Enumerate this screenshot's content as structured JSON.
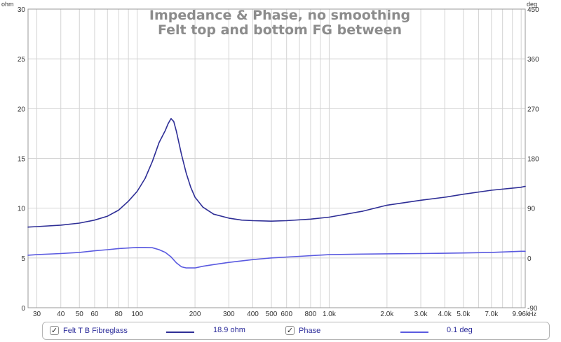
{
  "chart_data": {
    "type": "line",
    "title": "Impedance & Phase, no smoothing",
    "subtitle": "Felt top and bottom FG between",
    "x_axis": {
      "scale": "log",
      "range": [
        27,
        10500
      ],
      "unit": "Hz",
      "ticks": [
        {
          "value": 30,
          "label": "30"
        },
        {
          "value": 40,
          "label": "40"
        },
        {
          "value": 50,
          "label": "50"
        },
        {
          "value": 60,
          "label": "60"
        },
        {
          "value": 80,
          "label": "80"
        },
        {
          "value": 100,
          "label": "100"
        },
        {
          "value": 200,
          "label": "200"
        },
        {
          "value": 300,
          "label": "300"
        },
        {
          "value": 400,
          "label": "400"
        },
        {
          "value": 500,
          "label": "500"
        },
        {
          "value": 600,
          "label": "600"
        },
        {
          "value": 800,
          "label": "800"
        },
        {
          "value": 1000,
          "label": "1.0k"
        },
        {
          "value": 2000,
          "label": "2.0k"
        },
        {
          "value": 3000,
          "label": "3.0k"
        },
        {
          "value": 4000,
          "label": "4.0k"
        },
        {
          "value": 5000,
          "label": "5.0k"
        },
        {
          "value": 7000,
          "label": "7.0k"
        },
        {
          "value": 9960,
          "label": "9.96k"
        }
      ]
    },
    "y_left": {
      "unit": "ohm",
      "range": [
        0,
        30
      ],
      "ticks": [
        "0",
        "5",
        "10",
        "15",
        "20",
        "25",
        "30"
      ]
    },
    "y_right": {
      "unit": "deg",
      "range": [
        -90,
        450
      ],
      "ticks": [
        "-90",
        "0",
        "90",
        "180",
        "270",
        "360",
        "450"
      ]
    },
    "grid": true,
    "series": [
      {
        "name": "Felt T B Fibreglass",
        "axis": "left",
        "color": "#2e2e96",
        "legend_value": "18.9 ohm",
        "points": [
          [
            27,
            8.1
          ],
          [
            30,
            8.15
          ],
          [
            40,
            8.3
          ],
          [
            50,
            8.5
          ],
          [
            60,
            8.8
          ],
          [
            70,
            9.2
          ],
          [
            80,
            9.8
          ],
          [
            90,
            10.7
          ],
          [
            100,
            11.7
          ],
          [
            110,
            13.0
          ],
          [
            120,
            14.7
          ],
          [
            130,
            16.6
          ],
          [
            140,
            17.8
          ],
          [
            145,
            18.5
          ],
          [
            150,
            19.0
          ],
          [
            155,
            18.7
          ],
          [
            160,
            17.7
          ],
          [
            170,
            15.4
          ],
          [
            180,
            13.5
          ],
          [
            190,
            12.1
          ],
          [
            200,
            11.1
          ],
          [
            220,
            10.1
          ],
          [
            250,
            9.4
          ],
          [
            300,
            9.0
          ],
          [
            350,
            8.8
          ],
          [
            400,
            8.75
          ],
          [
            500,
            8.7
          ],
          [
            600,
            8.75
          ],
          [
            800,
            8.9
          ],
          [
            1000,
            9.1
          ],
          [
            1500,
            9.7
          ],
          [
            2000,
            10.3
          ],
          [
            3000,
            10.8
          ],
          [
            4000,
            11.1
          ],
          [
            5000,
            11.4
          ],
          [
            7000,
            11.8
          ],
          [
            9960,
            12.1
          ],
          [
            10500,
            12.2
          ]
        ]
      },
      {
        "name": "Phase",
        "axis": "right",
        "color": "#5a5ae0",
        "legend_value": "0.1 deg",
        "points": [
          [
            27,
            5
          ],
          [
            30,
            6
          ],
          [
            40,
            8
          ],
          [
            50,
            10
          ],
          [
            60,
            13
          ],
          [
            70,
            15
          ],
          [
            80,
            17
          ],
          [
            90,
            18
          ],
          [
            100,
            19
          ],
          [
            110,
            19
          ],
          [
            120,
            18.5
          ],
          [
            130,
            15
          ],
          [
            140,
            10
          ],
          [
            150,
            2
          ],
          [
            160,
            -9
          ],
          [
            170,
            -16
          ],
          [
            180,
            -18
          ],
          [
            200,
            -18
          ],
          [
            220,
            -15
          ],
          [
            250,
            -12
          ],
          [
            300,
            -8
          ],
          [
            400,
            -3
          ],
          [
            500,
            0
          ],
          [
            700,
            3
          ],
          [
            1000,
            6
          ],
          [
            1500,
            7
          ],
          [
            2000,
            7.5
          ],
          [
            3000,
            8
          ],
          [
            5000,
            9
          ],
          [
            7000,
            10
          ],
          [
            9960,
            12
          ],
          [
            10500,
            12
          ]
        ]
      }
    ]
  },
  "legend": {
    "items": [
      {
        "label": "Felt T B Fibreglass",
        "value": "18.9 ohm",
        "checked": "✓",
        "color": "#2e2e96"
      },
      {
        "label": "Phase",
        "value": "0.1 deg",
        "checked": "✓",
        "color": "#5a5ae0"
      }
    ]
  }
}
